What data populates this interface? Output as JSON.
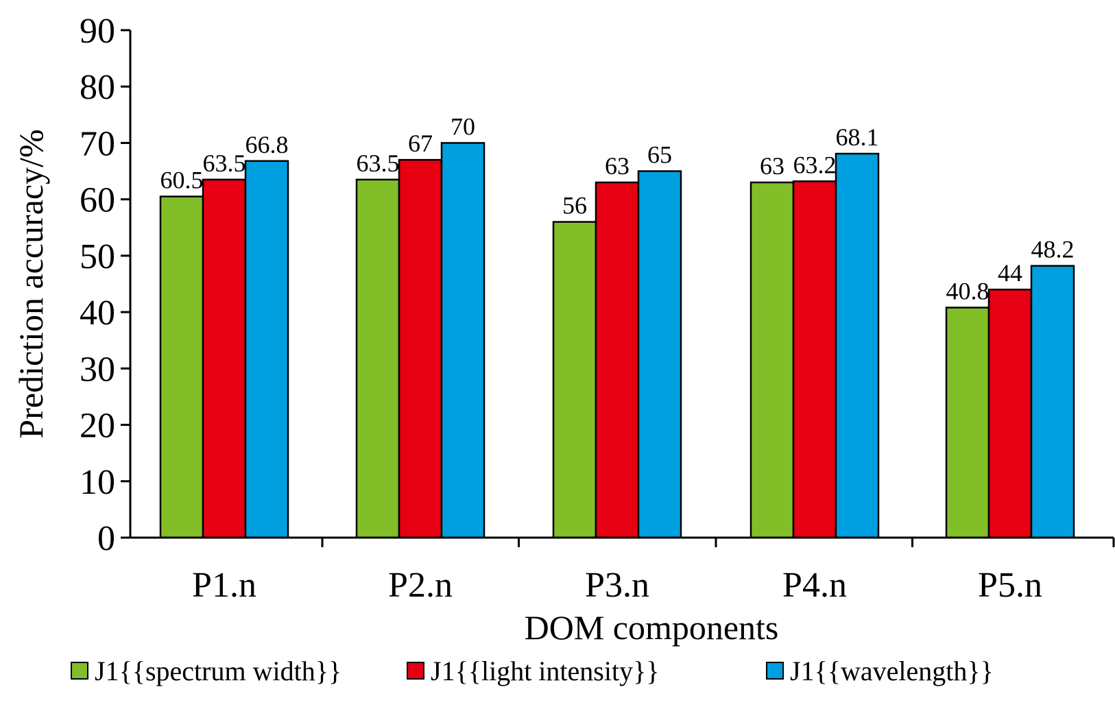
{
  "chart_data": {
    "type": "bar",
    "title": "",
    "xlabel": "DOM components",
    "ylabel": "Prediction accuracy/%",
    "ylim": [
      0,
      90
    ],
    "yticks": [
      0,
      10,
      20,
      30,
      40,
      50,
      60,
      70,
      80,
      90
    ],
    "grid": false,
    "legend_position": "bottom",
    "categories": [
      "P1.n",
      "P2.n",
      "P3.n",
      "P4.n",
      "P5.n"
    ],
    "series": [
      {
        "name": "J1{{spectrum width}}",
        "color": "#82BE28",
        "values": [
          60.5,
          63.5,
          56,
          63,
          40.8
        ],
        "labels": [
          "60.5",
          "63.5",
          "56",
          "63",
          "40.8"
        ]
      },
      {
        "name": "J1{{light intensity}}",
        "color": "#E60012",
        "values": [
          63.5,
          67,
          63,
          63.2,
          44
        ],
        "labels": [
          "63.5",
          "67",
          "63",
          "63.2",
          "44"
        ]
      },
      {
        "name": "J1{{wavelength}}",
        "color": "#00A0E0",
        "values": [
          66.8,
          70,
          65,
          68.1,
          48.2
        ],
        "labels": [
          "66.8",
          "70",
          "65",
          "68.1",
          "48.2"
        ]
      }
    ]
  }
}
